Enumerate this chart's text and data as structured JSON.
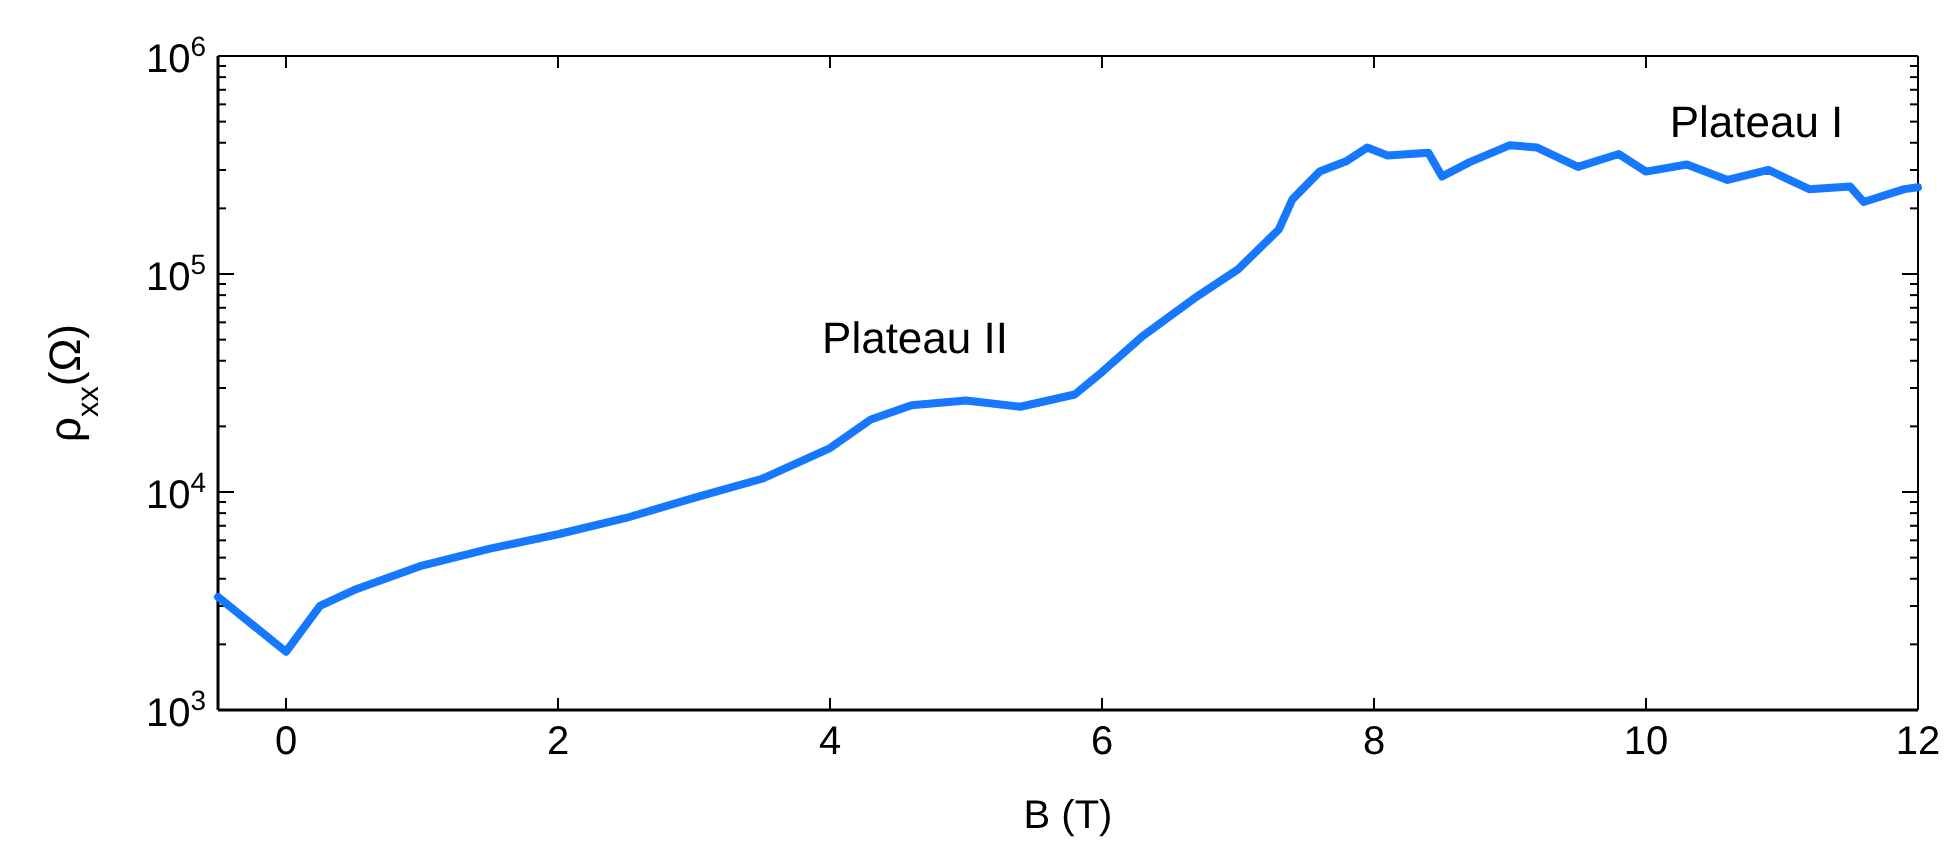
{
  "chart_data": {
    "type": "line",
    "xlabel": "B (T)",
    "ylabel": "ρ$_{xx}$(Ω)",
    "log": "y",
    "grid": false,
    "marker": "none",
    "line_style": "solid",
    "xlim": [
      -0.5,
      12
    ],
    "xticks": [
      0,
      2,
      4,
      6,
      8,
      10,
      12
    ],
    "ylim": [
      1000,
      1000000
    ],
    "yticks": [
      {
        "value": 1000,
        "label": "10$^{3}$"
      },
      {
        "value": 2000,
        "label": null
      },
      {
        "value": 3000,
        "label": null
      },
      {
        "value": 4000,
        "label": null
      },
      {
        "value": 5000,
        "label": null
      },
      {
        "value": 6000,
        "label": null
      },
      {
        "value": 7000,
        "label": null
      },
      {
        "value": 8000,
        "label": null
      },
      {
        "value": 9000,
        "label": null
      },
      {
        "value": 10000,
        "label": "10$^{4}$"
      },
      {
        "value": 20000,
        "label": null
      },
      {
        "value": 30000,
        "label": null
      },
      {
        "value": 40000,
        "label": null
      },
      {
        "value": 50000,
        "label": null
      },
      {
        "value": 60000,
        "label": null
      },
      {
        "value": 70000,
        "label": null
      },
      {
        "value": 80000,
        "label": null
      },
      {
        "value": 90000,
        "label": null
      },
      {
        "value": 100000,
        "label": "10$^{5}$"
      },
      {
        "value": 200000,
        "label": null
      },
      {
        "value": 300000,
        "label": null
      },
      {
        "value": 400000,
        "label": null
      },
      {
        "value": 500000,
        "label": null
      },
      {
        "value": 600000,
        "label": null
      },
      {
        "value": 700000,
        "label": null
      },
      {
        "value": 800000,
        "label": null
      },
      {
        "value": 900000,
        "label": null
      },
      {
        "value": 1000000,
        "label": "10$^{6}$"
      }
    ],
    "annotations": [
      "Plateau II",
      "Plateau I"
    ],
    "series": [
      {
        "color": "#1677ff",
        "x": [
          -0.5,
          0,
          0.25,
          0.5,
          1,
          1.5,
          2,
          2.5,
          3,
          3.5,
          4,
          4.3,
          4.6,
          5,
          5.4,
          5.8,
          6,
          6.3,
          6.7,
          7,
          7.3,
          7.4,
          7.6,
          7.8,
          7.95,
          8.1,
          8.4,
          8.5,
          8.7,
          9,
          9.2,
          9.5,
          9.8,
          10,
          10.3,
          10.6,
          10.9,
          11.2,
          11.5,
          11.6,
          11.9,
          12
        ],
        "values": [
          3300,
          1850,
          3000,
          3550,
          4600,
          5500,
          6400,
          7600,
          9400,
          11500,
          15900,
          21500,
          25000,
          26300,
          24600,
          28000,
          35500,
          52000,
          79000,
          105000,
          160000,
          220000,
          295000,
          330000,
          380000,
          350000,
          360000,
          280000,
          325000,
          390000,
          380000,
          310000,
          355000,
          295000,
          318000,
          270000,
          300000,
          245000,
          252000,
          214000,
          245000,
          250000
        ]
      }
    ]
  }
}
